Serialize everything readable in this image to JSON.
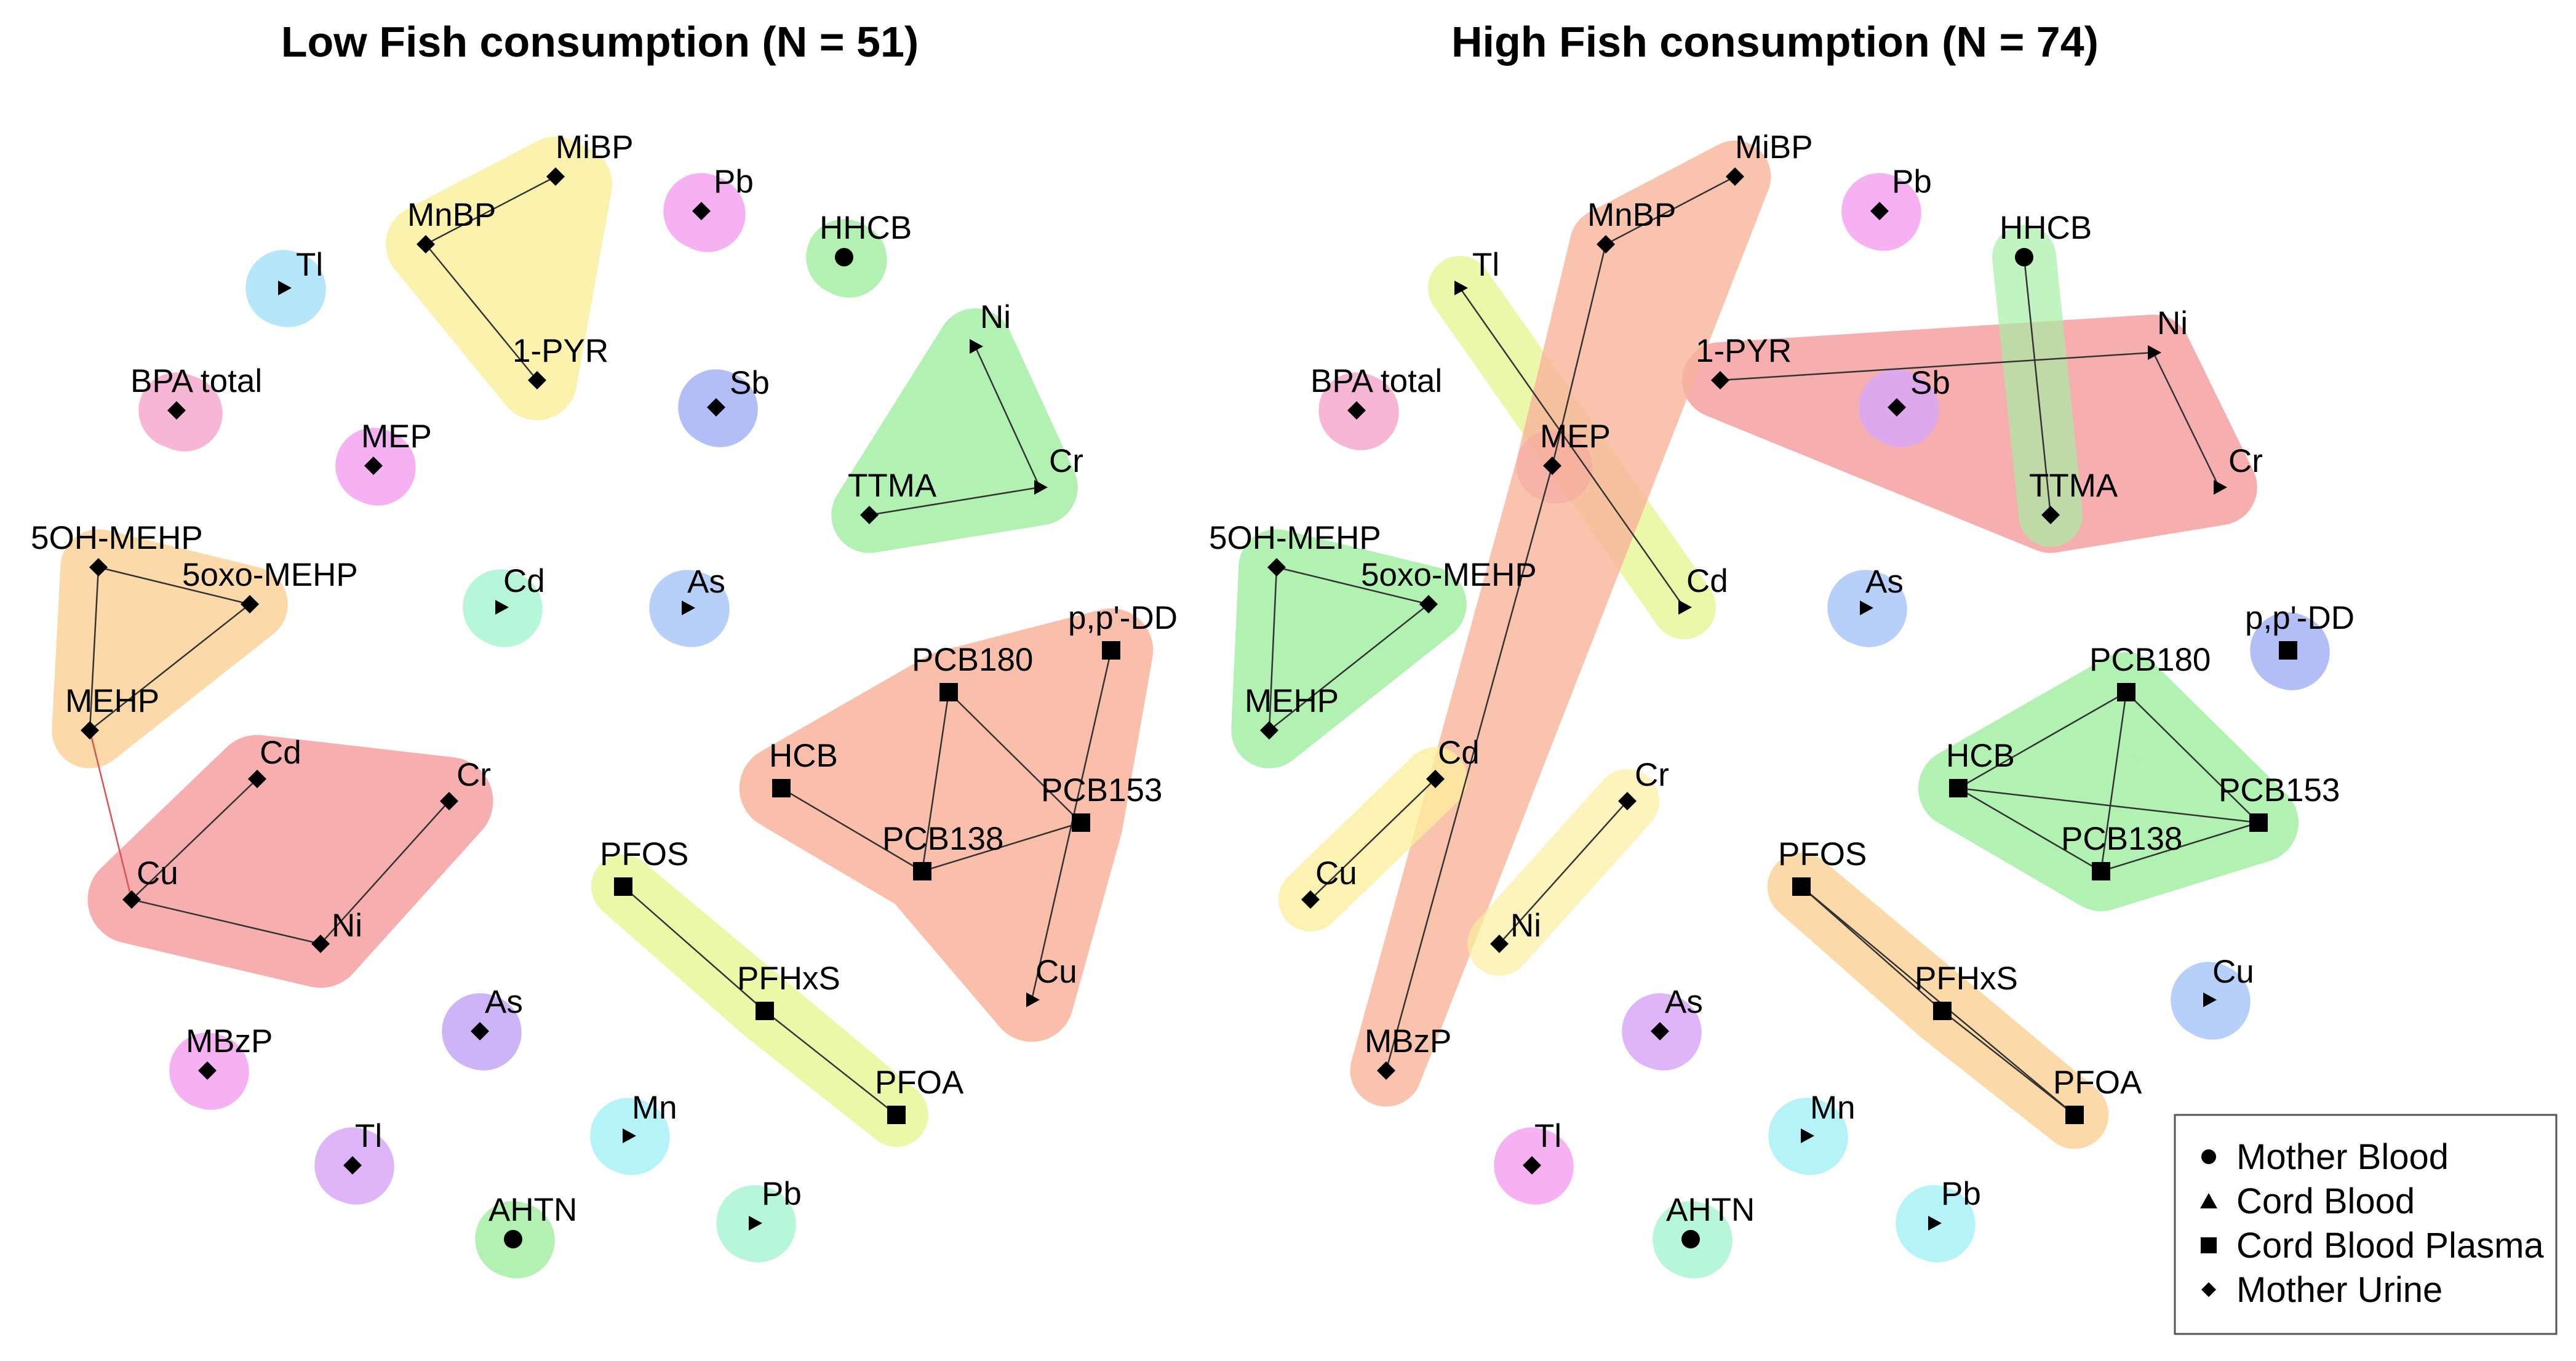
{
  "panels": [
    {
      "id": "low",
      "title": "Low Fish consumption (N = 51)",
      "nodes": [
        {
          "id": "MiBP",
          "label": "MiBP",
          "shape": "diamond"
        },
        {
          "id": "MnBP",
          "label": "MnBP",
          "shape": "diamond"
        },
        {
          "id": "1-PYR",
          "label": "1-PYR",
          "shape": "diamond"
        },
        {
          "id": "Pb_u",
          "label": "Pb",
          "shape": "diamond"
        },
        {
          "id": "HHCB",
          "label": "HHCB",
          "shape": "circle"
        },
        {
          "id": "Tl_c",
          "label": "Tl",
          "shape": "triangle"
        },
        {
          "id": "BPA",
          "label": "BPA total",
          "shape": "diamond"
        },
        {
          "id": "MEP",
          "label": "MEP",
          "shape": "diamond"
        },
        {
          "id": "Sb",
          "label": "Sb",
          "shape": "diamond"
        },
        {
          "id": "Ni_u",
          "label": "Ni",
          "shape": "triangle"
        },
        {
          "id": "Cr_c",
          "label": "Cr",
          "shape": "triangle"
        },
        {
          "id": "TTMA",
          "label": "TTMA",
          "shape": "diamond"
        },
        {
          "id": "5OH",
          "label": "5OH-MEHP",
          "shape": "diamond"
        },
        {
          "id": "5oxo",
          "label": "5oxo-MEHP",
          "shape": "diamond"
        },
        {
          "id": "MEHP",
          "label": "MEHP",
          "shape": "diamond"
        },
        {
          "id": "Cd_c",
          "label": "Cd",
          "shape": "triangle"
        },
        {
          "id": "As_c",
          "label": "As",
          "shape": "triangle"
        },
        {
          "id": "ppDD",
          "label": "p,p'-DD",
          "shape": "square"
        },
        {
          "id": "PCB180",
          "label": "PCB180",
          "shape": "square"
        },
        {
          "id": "HCB",
          "label": "HCB",
          "shape": "square"
        },
        {
          "id": "PCB153",
          "label": "PCB153",
          "shape": "square"
        },
        {
          "id": "PCB138",
          "label": "PCB138",
          "shape": "square"
        },
        {
          "id": "Cd_u",
          "label": "Cd",
          "shape": "diamond"
        },
        {
          "id": "Cr_u",
          "label": "Cr",
          "shape": "diamond"
        },
        {
          "id": "Cu_u",
          "label": "Cu",
          "shape": "diamond"
        },
        {
          "id": "Ni_d",
          "label": "Ni",
          "shape": "diamond"
        },
        {
          "id": "PFOS",
          "label": "PFOS",
          "shape": "square"
        },
        {
          "id": "PFHxS",
          "label": "PFHxS",
          "shape": "square"
        },
        {
          "id": "PFOA",
          "label": "PFOA",
          "shape": "square"
        },
        {
          "id": "Cu_c",
          "label": "Cu",
          "shape": "triangle"
        },
        {
          "id": "MBzP",
          "label": "MBzP",
          "shape": "diamond"
        },
        {
          "id": "As_u",
          "label": "As",
          "shape": "diamond"
        },
        {
          "id": "Mn",
          "label": "Mn",
          "shape": "triangle"
        },
        {
          "id": "Tl_u",
          "label": "Tl",
          "shape": "diamond"
        },
        {
          "id": "AHTN",
          "label": "AHTN",
          "shape": "circle"
        },
        {
          "id": "Pb_c",
          "label": "Pb",
          "shape": "triangle"
        }
      ],
      "edges": [
        [
          "MiBP",
          "MnBP"
        ],
        [
          "MnBP",
          "1-PYR"
        ],
        [
          "Ni_u",
          "Cr_c"
        ],
        [
          "Cr_c",
          "TTMA"
        ],
        [
          "5OH",
          "5oxo"
        ],
        [
          "5OH",
          "MEHP"
        ],
        [
          "5oxo",
          "MEHP"
        ],
        [
          "MEHP",
          "Cu_u",
          "#e05050"
        ],
        [
          "Cd_u",
          "Cu_u"
        ],
        [
          "Cu_u",
          "Ni_d"
        ],
        [
          "Cr_u",
          "Ni_d"
        ],
        [
          "PCB180",
          "PCB153"
        ],
        [
          "PCB180",
          "PCB138"
        ],
        [
          "HCB",
          "PCB138"
        ],
        [
          "PCB138",
          "PCB153"
        ],
        [
          "ppDD",
          "Cu_c"
        ],
        [
          "PFOS",
          "PFHxS"
        ],
        [
          "PFHxS",
          "PFOA"
        ]
      ]
    },
    {
      "id": "high",
      "title": "High Fish consumption (N = 74)",
      "nodes": [
        {
          "id": "MiBP",
          "label": "MiBP",
          "shape": "diamond"
        },
        {
          "id": "MnBP",
          "label": "MnBP",
          "shape": "diamond"
        },
        {
          "id": "Pb_u",
          "label": "Pb",
          "shape": "diamond"
        },
        {
          "id": "HHCB",
          "label": "HHCB",
          "shape": "circle"
        },
        {
          "id": "Tl_c",
          "label": "Tl",
          "shape": "triangle"
        },
        {
          "id": "1-PYR",
          "label": "1-PYR",
          "shape": "diamond"
        },
        {
          "id": "Ni_c",
          "label": "Ni",
          "shape": "triangle"
        },
        {
          "id": "BPA",
          "label": "BPA total",
          "shape": "diamond"
        },
        {
          "id": "Sb",
          "label": "Sb",
          "shape": "diamond"
        },
        {
          "id": "MEP",
          "label": "MEP",
          "shape": "diamond"
        },
        {
          "id": "Cr_c",
          "label": "Cr",
          "shape": "triangle"
        },
        {
          "id": "TTMA",
          "label": "TTMA",
          "shape": "diamond"
        },
        {
          "id": "5OH",
          "label": "5OH-MEHP",
          "shape": "diamond"
        },
        {
          "id": "5oxo",
          "label": "5oxo-MEHP",
          "shape": "diamond"
        },
        {
          "id": "Cd_c",
          "label": "Cd",
          "shape": "triangle"
        },
        {
          "id": "As_c",
          "label": "As",
          "shape": "triangle"
        },
        {
          "id": "ppDD",
          "label": "p,p'-DD",
          "shape": "square"
        },
        {
          "id": "MEHP",
          "label": "MEHP",
          "shape": "diamond"
        },
        {
          "id": "PCB180",
          "label": "PCB180",
          "shape": "square"
        },
        {
          "id": "Cd_u",
          "label": "Cd",
          "shape": "diamond"
        },
        {
          "id": "Cr_u",
          "label": "Cr",
          "shape": "diamond"
        },
        {
          "id": "HCB",
          "label": "HCB",
          "shape": "square"
        },
        {
          "id": "PCB153",
          "label": "PCB153",
          "shape": "square"
        },
        {
          "id": "PCB138",
          "label": "PCB138",
          "shape": "square"
        },
        {
          "id": "Cu_u",
          "label": "Cu",
          "shape": "diamond"
        },
        {
          "id": "PFOS",
          "label": "PFOS",
          "shape": "square"
        },
        {
          "id": "Ni_u",
          "label": "Ni",
          "shape": "diamond"
        },
        {
          "id": "PFHxS",
          "label": "PFHxS",
          "shape": "square"
        },
        {
          "id": "Cu_c",
          "label": "Cu",
          "shape": "triangle"
        },
        {
          "id": "As_u",
          "label": "As",
          "shape": "diamond"
        },
        {
          "id": "MBzP",
          "label": "MBzP",
          "shape": "diamond"
        },
        {
          "id": "PFOA",
          "label": "PFOA",
          "shape": "square"
        },
        {
          "id": "Mn",
          "label": "Mn",
          "shape": "triangle"
        },
        {
          "id": "Tl_u",
          "label": "Tl",
          "shape": "diamond"
        },
        {
          "id": "AHTN",
          "label": "AHTN",
          "shape": "circle"
        },
        {
          "id": "Pb_c",
          "label": "Pb",
          "shape": "triangle"
        }
      ],
      "edges": [
        [
          "MiBP",
          "MnBP"
        ],
        [
          "MnBP",
          "MEP"
        ],
        [
          "MEP",
          "MBzP"
        ],
        [
          "Tl_c",
          "Cd_c"
        ],
        [
          "1-PYR",
          "Ni_c"
        ],
        [
          "Ni_c",
          "Cr_c"
        ],
        [
          "HHCB",
          "TTMA"
        ],
        [
          "5OH",
          "5oxo"
        ],
        [
          "5OH",
          "MEHP"
        ],
        [
          "5oxo",
          "MEHP"
        ],
        [
          "Cd_u",
          "Cu_u"
        ],
        [
          "Cr_u",
          "Ni_u"
        ],
        [
          "PCB180",
          "HCB"
        ],
        [
          "PCB180",
          "PCB138"
        ],
        [
          "PCB180",
          "PCB153"
        ],
        [
          "HCB",
          "PCB138"
        ],
        [
          "HCB",
          "PCB153"
        ],
        [
          "PCB138",
          "PCB153"
        ],
        [
          "PFOS",
          "PFHxS"
        ],
        [
          "PFHxS",
          "PFOA"
        ],
        [
          "PFOS",
          "PFOA"
        ]
      ]
    }
  ],
  "legend": [
    {
      "shape": "circle",
      "label": "Mother Blood"
    },
    {
      "shape": "triangle",
      "label": "Cord Blood"
    },
    {
      "shape": "square",
      "label": "Cord Blood Plasma"
    },
    {
      "shape": "diamond",
      "label": "Mother Urine"
    }
  ],
  "colors": {
    "yellow": "#fbef9c",
    "pink": "#f7a9d0",
    "magenta": "#f3a3f0",
    "green": "#a4efa4",
    "lightblue": "#a8e2f8",
    "blue": "#a5b4f5",
    "orange": "#fcd39b",
    "red": "#f6a0a0",
    "salmon": "#f8b59c",
    "lime": "#e7f79a",
    "lavender": "#c4a7f5",
    "mint": "#a9f4d2",
    "cyan": "#a7f2f8",
    "violet": "#d8a8f7",
    "cornflower": "#a9c8f8"
  }
}
